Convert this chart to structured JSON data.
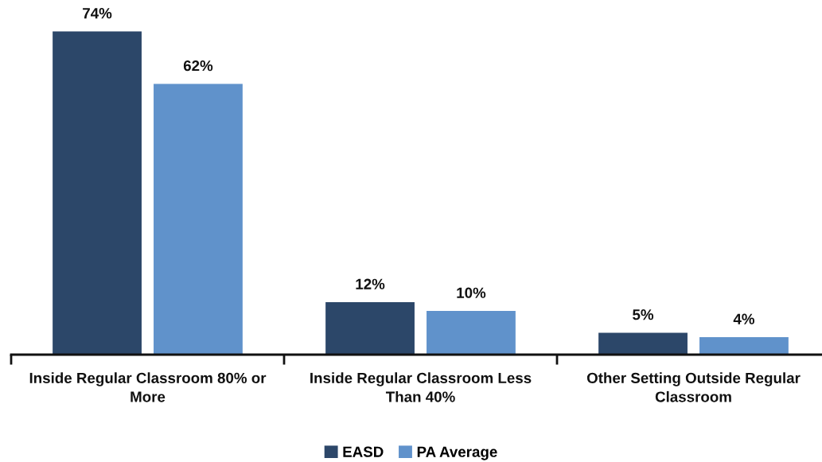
{
  "chart_data": {
    "type": "bar",
    "categories": [
      "Inside Regular Classroom 80% or\nMore",
      "Inside Regular Classroom Less\nThan 40%",
      "Other Setting Outside Regular\nClassroom"
    ],
    "series": [
      {
        "name": "EASD",
        "color": "#2c4769",
        "values": [
          74,
          12,
          5
        ],
        "value_labels": [
          "74%",
          "12%",
          "5%"
        ]
      },
      {
        "name": "PA Average",
        "color": "#6092cb",
        "values": [
          62,
          10,
          4
        ],
        "value_labels": [
          "62%",
          "10%",
          "4%"
        ]
      }
    ],
    "tick_labels": "x",
    "grid": false,
    "legend": "bottom"
  }
}
